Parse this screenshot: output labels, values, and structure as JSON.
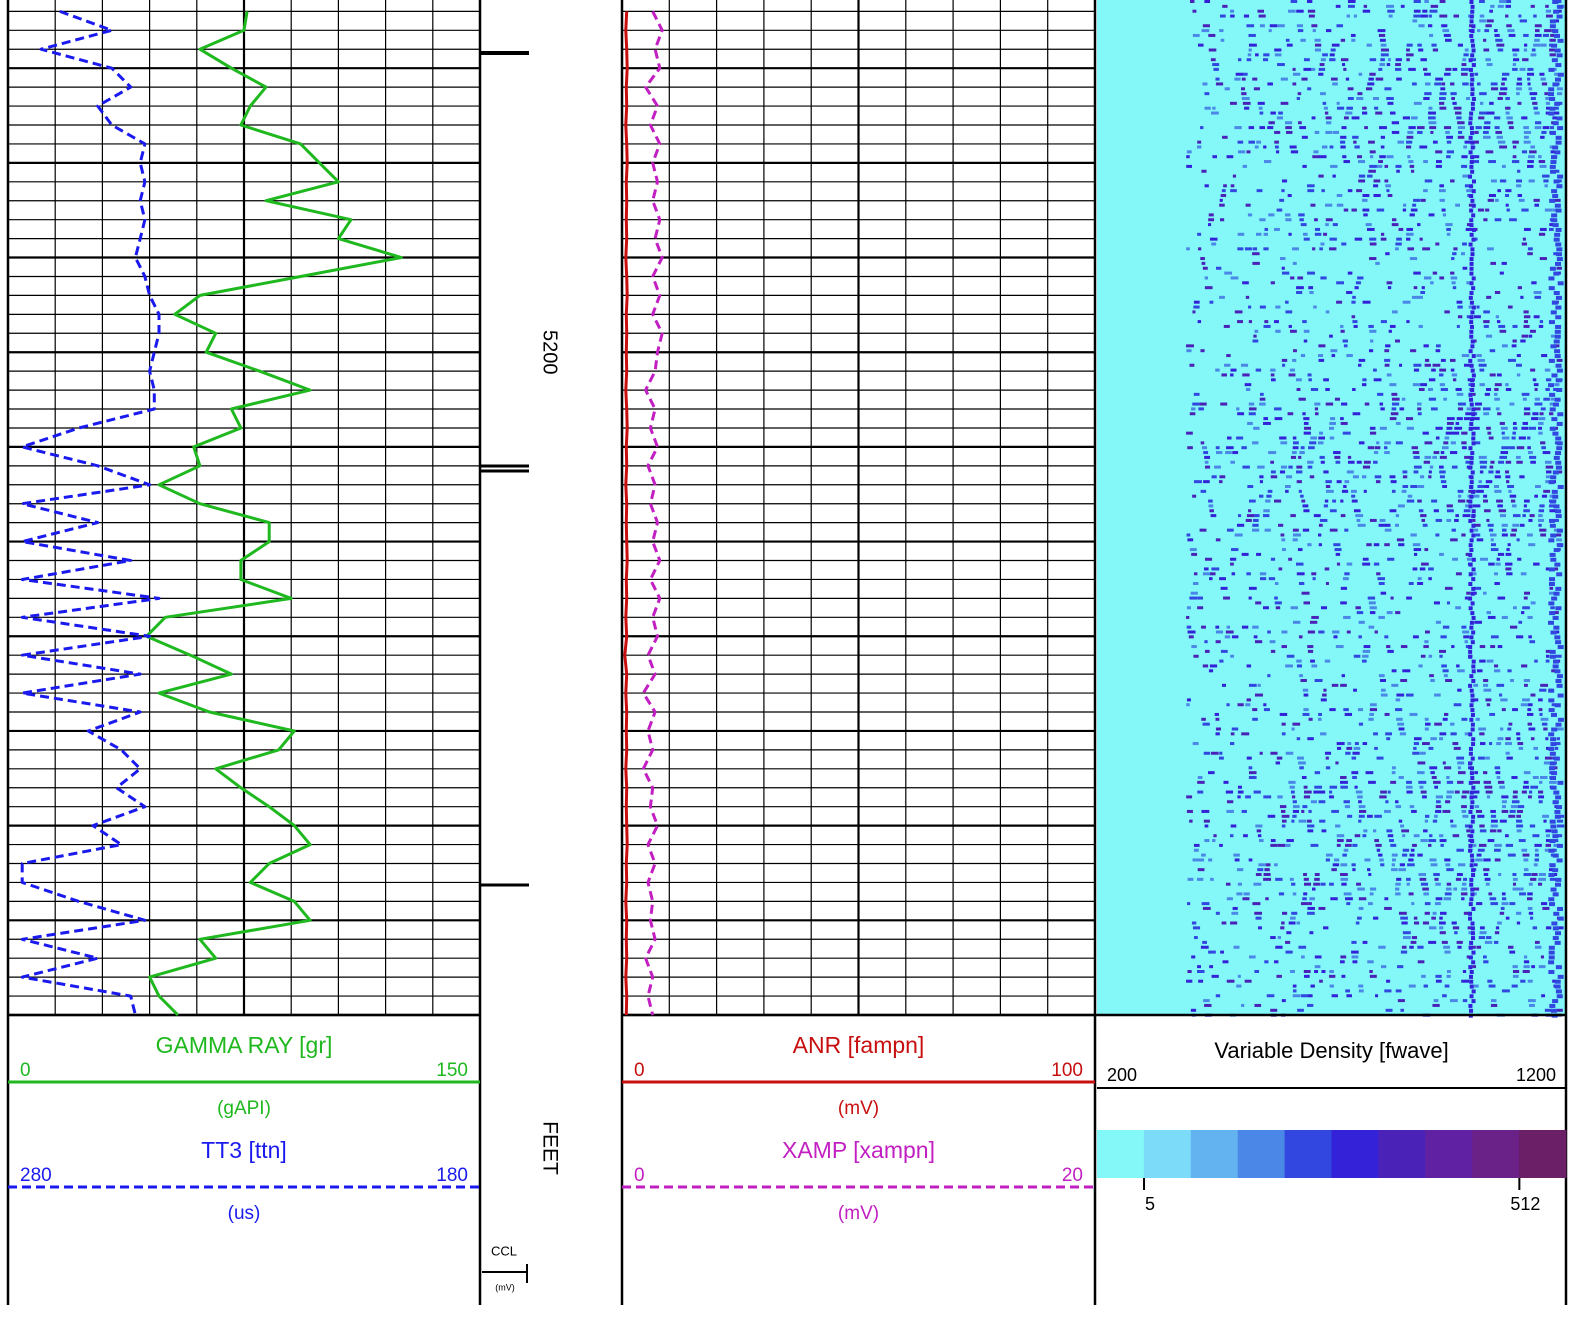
{
  "depth_track": {
    "label": "FEET",
    "ylim": [
      5162.8,
      5270
    ],
    "yticks": [
      5200
    ],
    "ccl_label": "CCL",
    "ccl_unit": "(mV)"
  },
  "chart_data": [
    {
      "type": "line",
      "depth": [
        5164,
        5166,
        5168,
        5170,
        5172,
        5174,
        5176,
        5178,
        5180,
        5182,
        5184,
        5186,
        5188,
        5190,
        5192,
        5194,
        5196,
        5198,
        5200,
        5202,
        5204,
        5206,
        5208,
        5210,
        5212,
        5214,
        5216,
        5218,
        5220,
        5222,
        5224,
        5226,
        5228,
        5230,
        5232,
        5234,
        5236,
        5238,
        5240,
        5242,
        5244,
        5246,
        5248,
        5250,
        5252,
        5254,
        5256,
        5258,
        5260,
        5262,
        5264,
        5266,
        5268,
        5270
      ],
      "ylim": [
        5162.8,
        5270
      ],
      "grid": {
        "minor": 2,
        "major": 10,
        "divisions": 10
      },
      "series": [
        {
          "name": "GAMMA RAY [gr]",
          "unit": "(gAPI)",
          "color": "#1fb81f",
          "dashed": false,
          "xlim": [
            0,
            150
          ],
          "values": [
            76,
            75,
            61,
            71,
            82,
            77,
            74,
            93,
            99,
            105,
            82,
            109,
            105,
            125,
            93,
            61,
            53,
            66,
            63,
            80,
            96,
            71,
            74,
            59,
            61,
            48,
            61,
            83,
            83,
            74,
            74,
            90,
            50,
            44,
            58,
            71,
            48,
            64,
            91,
            86,
            66,
            74,
            83,
            91,
            96,
            83,
            77,
            91,
            96,
            61,
            66,
            45,
            48,
            54
          ]
        },
        {
          "name": "TT3 [ttn]",
          "unit": "(us)",
          "color": "#1a1aee",
          "dashed": true,
          "xlim": [
            280,
            180
          ],
          "values": [
            269,
            258,
            273,
            258,
            254,
            261,
            258,
            251,
            252,
            251,
            252,
            251,
            252,
            253,
            251,
            250,
            248,
            248,
            249,
            250,
            249,
            249,
            265,
            277,
            261,
            250,
            277,
            261,
            277,
            254,
            277,
            248,
            277,
            250,
            277,
            252,
            277,
            252,
            263,
            256,
            252,
            257,
            251,
            262,
            256,
            277,
            277,
            265,
            251,
            277,
            261,
            277,
            254,
            253
          ]
        }
      ]
    },
    {
      "type": "line",
      "depth": [
        5164,
        5166,
        5168,
        5170,
        5172,
        5174,
        5176,
        5178,
        5180,
        5182,
        5184,
        5186,
        5188,
        5190,
        5192,
        5194,
        5196,
        5198,
        5200,
        5202,
        5204,
        5206,
        5208,
        5210,
        5212,
        5214,
        5216,
        5218,
        5220,
        5222,
        5224,
        5226,
        5228,
        5230,
        5232,
        5234,
        5236,
        5238,
        5240,
        5242,
        5244,
        5246,
        5248,
        5250,
        5252,
        5254,
        5256,
        5258,
        5260,
        5262,
        5264,
        5266,
        5268,
        5270
      ],
      "ylim": [
        5162.8,
        5270
      ],
      "grid": {
        "minor": 2,
        "major": 10,
        "divisions": 10
      },
      "series": [
        {
          "name": "ANR [fampn]",
          "unit": "(mV)",
          "color": "#c80f0f",
          "dashed": false,
          "xlim": [
            0,
            100
          ],
          "values": [
            1,
            0.8,
            1,
            1.1,
            0.9,
            1,
            0.8,
            1,
            1.1,
            0.9,
            1,
            0.9,
            1,
            0.8,
            1,
            1.1,
            0.9,
            1,
            0.9,
            1,
            0.8,
            1,
            1.1,
            0.9,
            1,
            0.8,
            1,
            0.9,
            1,
            1.1,
            0.9,
            1,
            0.8,
            1,
            0.6,
            1,
            0.8,
            1,
            0.9,
            1,
            0.8,
            1,
            0.9,
            1,
            1.1,
            0.9,
            1,
            0.8,
            1,
            0.9,
            1,
            0.8,
            1,
            0.9
          ]
        },
        {
          "name": "XAMP [xampn]",
          "unit": "(mV)",
          "color": "#c21fc2",
          "dashed": true,
          "xlim": [
            0,
            20
          ],
          "values": [
            1.3,
            1.7,
            1.4,
            1.6,
            1.0,
            1.5,
            1.2,
            1.6,
            1.3,
            1.5,
            1.3,
            1.6,
            1.4,
            1.7,
            1.3,
            1.6,
            1.3,
            1.7,
            1.5,
            1.4,
            1.0,
            1.4,
            1.2,
            1.5,
            1.1,
            1.4,
            1.2,
            1.5,
            1.3,
            1.6,
            1.2,
            1.6,
            1.3,
            1.5,
            1.1,
            1.4,
            0.9,
            1.4,
            1.1,
            1.3,
            0.9,
            1.3,
            1.2,
            1.5,
            1.1,
            1.4,
            1.1,
            1.3,
            1.2,
            1.4,
            1.0,
            1.3,
            1.1,
            1.3
          ]
        }
      ]
    },
    {
      "type": "image",
      "title": "Variable Density [fwave]",
      "xlim": [
        200,
        1200
      ],
      "colorbar": {
        "log": true,
        "clim": [
          2.8,
          910
        ],
        "ticks": [
          5,
          512
        ],
        "colors": [
          "#84f7f8",
          "#7cdbf8",
          "#62b3f0",
          "#4a87e6",
          "#3247e0",
          "#3322d8",
          "#4b22b8",
          "#6022a3",
          "#6a2288",
          "#6a1f66"
        ]
      }
    }
  ]
}
